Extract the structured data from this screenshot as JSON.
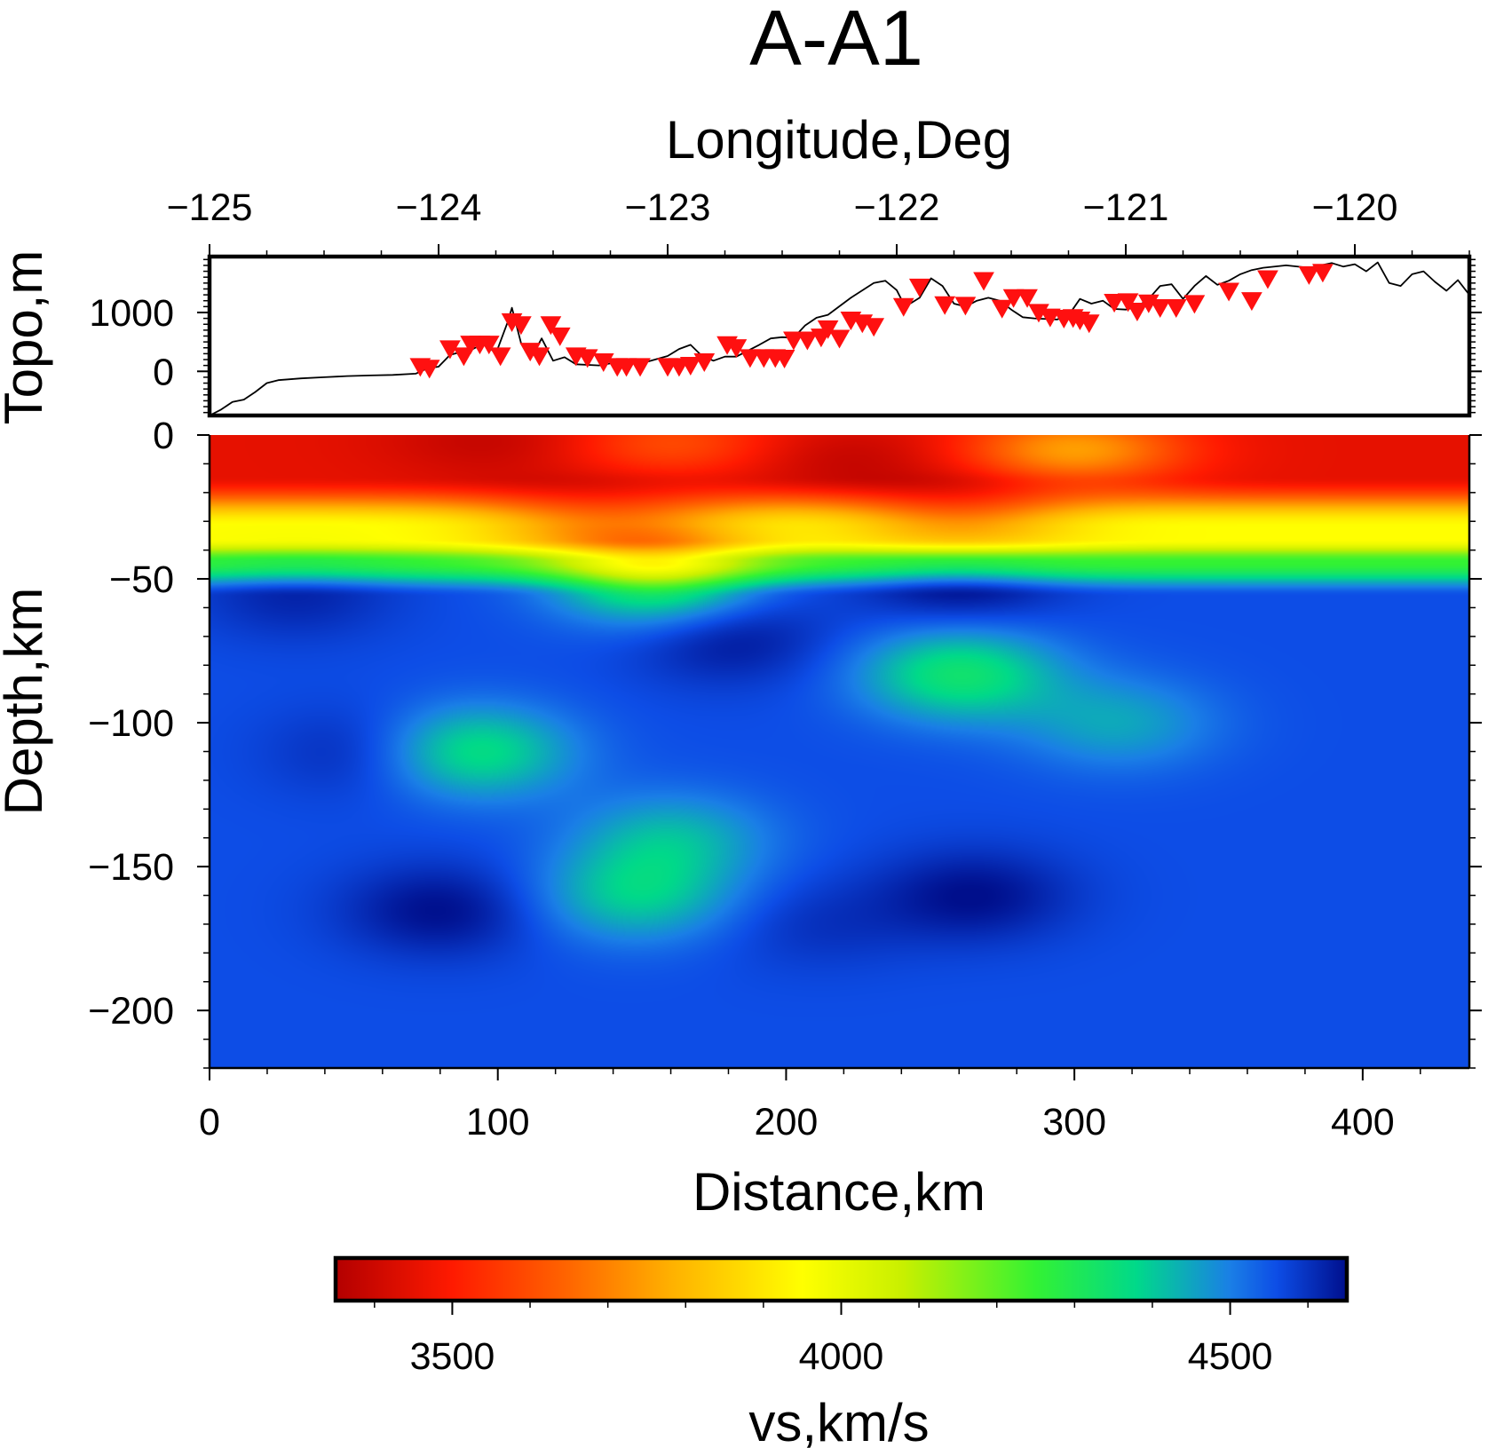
{
  "chart_data": [
    {
      "type": "line",
      "panel": "topography",
      "title": "A-A1",
      "xlabel_top": "Longitude,Deg",
      "ylabel": "Topo,m",
      "x_ticks": [
        -125,
        -124,
        -123,
        -122,
        -121,
        -120
      ],
      "x_tick_labels": [
        "−125",
        "−124",
        "−123",
        "−122",
        "−121",
        "−120"
      ],
      "xlim": [
        -125,
        -119.5
      ],
      "y_ticks": [
        1000,
        0
      ],
      "y_tick_labels": [
        "1000",
        "0"
      ],
      "ylim": [
        -750,
        1950
      ],
      "series": [
        {
          "color": "#000000",
          "x": [
            -125.0,
            -124.95,
            -124.9,
            -124.85,
            -124.8,
            -124.75,
            -124.7,
            -124.6,
            -124.5,
            -124.4,
            -124.3,
            -124.2,
            -124.1,
            -124.05,
            -124.0,
            -123.95,
            -123.9,
            -123.85,
            -123.8,
            -123.75,
            -123.7,
            -123.68,
            -123.64,
            -123.6,
            -123.55,
            -123.5,
            -123.45,
            -123.4,
            -123.3,
            -123.2,
            -123.1,
            -123.0,
            -122.95,
            -122.9,
            -122.85,
            -122.8,
            -122.75,
            -122.7,
            -122.6,
            -122.55,
            -122.5,
            -122.45,
            -122.4,
            -122.35,
            -122.3,
            -122.2,
            -122.1,
            -122.05,
            -122.0,
            -121.97,
            -121.95,
            -121.9,
            -121.85,
            -121.8,
            -121.75,
            -121.7,
            -121.65,
            -121.6,
            -121.55,
            -121.5,
            -121.45,
            -121.4,
            -121.3,
            -121.25,
            -121.2,
            -121.15,
            -121.1,
            -121.05,
            -121.0,
            -120.95,
            -120.9,
            -120.85,
            -120.8,
            -120.75,
            -120.7,
            -120.65,
            -120.6,
            -120.55,
            -120.5,
            -120.45,
            -120.4,
            -120.3,
            -120.2,
            -120.1,
            -120.05,
            -120.0,
            -119.95,
            -119.9,
            -119.85,
            -119.8,
            -119.75,
            -119.7,
            -119.65,
            -119.6,
            -119.55,
            -119.5
          ],
          "y": [
            -750,
            -650,
            -520,
            -480,
            -350,
            -200,
            -150,
            -120,
            -100,
            -80,
            -70,
            -60,
            -40,
            50,
            80,
            280,
            330,
            380,
            480,
            300,
            820,
            1080,
            480,
            200,
            560,
            180,
            240,
            120,
            100,
            170,
            150,
            260,
            380,
            450,
            260,
            180,
            250,
            250,
            450,
            560,
            580,
            570,
            780,
            910,
            960,
            1250,
            1500,
            1540,
            1380,
            1150,
            1130,
            1250,
            1580,
            1450,
            1150,
            1100,
            1200,
            1250,
            1200,
            1050,
            920,
            900,
            880,
            950,
            1230,
            1150,
            1200,
            1060,
            1050,
            1100,
            1230,
            1450,
            1480,
            1230,
            1450,
            1620,
            1470,
            1540,
            1650,
            1720,
            1760,
            1800,
            1760,
            1840,
            1780,
            1820,
            1700,
            1850,
            1500,
            1450,
            1650,
            1700,
            1520,
            1370,
            1550,
            1300
          ]
        }
      ],
      "stations": {
        "color": "#ff1010",
        "marker": "inverted-triangle",
        "x": [
          -124.08,
          -124.04,
          -123.95,
          -123.89,
          -123.86,
          -123.82,
          -123.78,
          -123.73,
          -123.68,
          -123.64,
          -123.6,
          -123.56,
          -123.51,
          -123.47,
          -123.4,
          -123.35,
          -123.28,
          -123.22,
          -123.18,
          -123.12,
          -123.0,
          -122.95,
          -122.9,
          -122.84,
          -122.74,
          -122.7,
          -122.64,
          -122.58,
          -122.53,
          -122.49,
          -122.45,
          -122.39,
          -122.33,
          -122.3,
          -122.25,
          -122.2,
          -122.15,
          -122.1,
          -121.97,
          -121.9,
          -121.79,
          -121.7,
          -121.62,
          -121.54,
          -121.49,
          -121.43,
          -121.38,
          -121.33,
          -121.27,
          -121.23,
          -121.2,
          -121.16,
          -121.05,
          -120.99,
          -120.95,
          -120.9,
          -120.85,
          -120.78,
          -120.7,
          -120.55,
          -120.45,
          -120.38,
          -120.2,
          -120.14
        ],
        "y": [
          120,
          90,
          420,
          300,
          500,
          500,
          500,
          300,
          880,
          830,
          380,
          300,
          830,
          640,
          300,
          270,
          200,
          120,
          120,
          120,
          120,
          120,
          140,
          200,
          490,
          440,
          270,
          270,
          270,
          260,
          570,
          570,
          620,
          760,
          600,
          910,
          860,
          800,
          1140,
          1470,
          1170,
          1160,
          1580,
          1110,
          1290,
          1290,
          1040,
          960,
          940,
          950,
          910,
          860,
          1210,
          1220,
          1060,
          1200,
          1120,
          1120,
          1190,
          1400,
          1240,
          1610,
          1680,
          1720
        ]
      }
    },
    {
      "type": "heatmap",
      "panel": "velocity-section",
      "xlabel": "Distance,km",
      "ylabel": "Depth,km",
      "xlim": [
        0,
        437
      ],
      "ylim": [
        -220,
        0
      ],
      "x_ticks": [
        0,
        100,
        200,
        300,
        400
      ],
      "x_tick_labels": [
        "0",
        "100",
        "200",
        "300",
        "400"
      ],
      "y_ticks": [
        0,
        -50,
        -100,
        -150,
        -200
      ],
      "y_tick_labels": [
        "0",
        "−50",
        "−100",
        "−150",
        "−200"
      ],
      "background_vs": 4560,
      "upper_layers": [
        {
          "depth_range": [
            0,
            -20
          ],
          "vs": 3450
        },
        {
          "depth_range": [
            -20,
            -40
          ],
          "vs": 3950
        },
        {
          "depth_range": [
            -40,
            -50
          ],
          "vs": 4250
        }
      ],
      "anomalies": [
        {
          "x": 20,
          "depth": -5,
          "vs": 3450
        },
        {
          "x": 100,
          "depth": -2,
          "vs": 3380
        },
        {
          "x": 160,
          "depth": -3,
          "vs": 3600
        },
        {
          "x": 220,
          "depth": -8,
          "vs": 3380
        },
        {
          "x": 300,
          "depth": -5,
          "vs": 3750
        },
        {
          "x": 350,
          "depth": -8,
          "vs": 3450
        },
        {
          "x": 130,
          "depth": -30,
          "vs": 3760
        },
        {
          "x": 165,
          "depth": -30,
          "vs": 3900
        },
        {
          "x": 260,
          "depth": -30,
          "vs": 3700
        },
        {
          "x": 155,
          "depth": -48,
          "vs": 4250
        },
        {
          "x": 260,
          "depth": -50,
          "vs": 4660
        },
        {
          "x": 30,
          "depth": -55,
          "vs": 4620
        },
        {
          "x": 60,
          "depth": -110,
          "vs": 4640
        },
        {
          "x": 180,
          "depth": -70,
          "vs": 4640
        },
        {
          "x": 90,
          "depth": -110,
          "vs": 4340
        },
        {
          "x": 260,
          "depth": -83,
          "vs": 4340
        },
        {
          "x": 315,
          "depth": -100,
          "vs": 4450
        },
        {
          "x": 148,
          "depth": -160,
          "vs": 4400
        },
        {
          "x": 160,
          "depth": -140,
          "vs": 4430
        },
        {
          "x": 80,
          "depth": -165,
          "vs": 4650
        },
        {
          "x": 265,
          "depth": -160,
          "vs": 4650
        },
        {
          "x": 210,
          "depth": -170,
          "vs": 4600
        }
      ]
    },
    {
      "type": "colorbar",
      "label": "vs,km/s",
      "range": [
        3350,
        4650
      ],
      "ticks": [
        3500,
        4000,
        4500
      ],
      "tick_labels": [
        "3500",
        "4000",
        "4500"
      ],
      "stops": [
        {
          "vs": 3350,
          "color": "#b30000"
        },
        {
          "vs": 3500,
          "color": "#ff1a00"
        },
        {
          "vs": 3650,
          "color": "#ff6600"
        },
        {
          "vs": 3780,
          "color": "#ffb000"
        },
        {
          "vs": 3950,
          "color": "#ffff00"
        },
        {
          "vs": 4080,
          "color": "#c8f000"
        },
        {
          "vs": 4250,
          "color": "#33f233"
        },
        {
          "vs": 4380,
          "color": "#00d98a"
        },
        {
          "vs": 4500,
          "color": "#1a7fe6"
        },
        {
          "vs": 4560,
          "color": "#0d4de6"
        },
        {
          "vs": 4650,
          "color": "#000f8c"
        }
      ]
    }
  ]
}
